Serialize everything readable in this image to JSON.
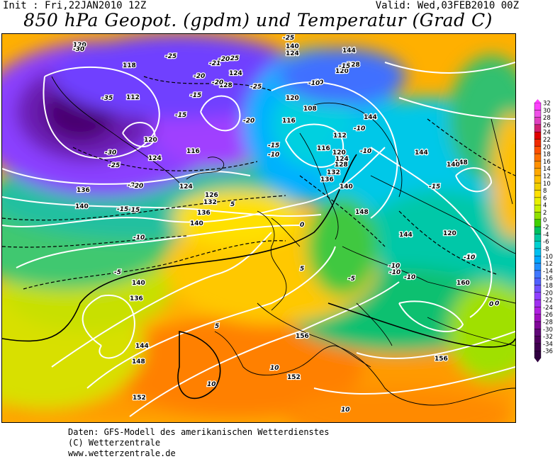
{
  "header": {
    "init": "Init : Fri,22JAN2010 12Z",
    "valid": "Valid: Wed,03FEB2010 00Z",
    "title": "850 hPa Geopot. (gpdm) und Temperatur (Grad C)"
  },
  "colorbar": {
    "labels": [
      "32",
      "30",
      "28",
      "26",
      "24",
      "22",
      "20",
      "18",
      "16",
      "14",
      "12",
      "10",
      "8",
      "6",
      "4",
      "2",
      "0",
      "-2",
      "-4",
      "-6",
      "-8",
      "-10",
      "-12",
      "-14",
      "-16",
      "-18",
      "-20",
      "-22",
      "-24",
      "-26",
      "-28",
      "-30",
      "-32",
      "-34",
      "-36"
    ],
    "colors": [
      "#ff40ff",
      "#f050e8",
      "#e040c0",
      "#d02070",
      "#e00000",
      "#f02a00",
      "#ff5000",
      "#ff7000",
      "#ff9000",
      "#ffa800",
      "#ffc000",
      "#f0d000",
      "#ffe000",
      "#e8f000",
      "#c8f000",
      "#90e000",
      "#40d000",
      "#00c060",
      "#00c8a0",
      "#00d0d0",
      "#00c0f0",
      "#00a8ff",
      "#2090ff",
      "#4078ff",
      "#5060ff",
      "#7050ff",
      "#9040ff",
      "#a030f0",
      "#b020e0",
      "#a010c0",
      "#800898",
      "#600878",
      "#500060",
      "#400050",
      "#300040"
    ]
  },
  "map": {
    "contour_labels_height": [
      "120",
      "118",
      "112",
      "120",
      "124",
      "128",
      "124",
      "120",
      "116",
      "108",
      "112",
      "116",
      "120",
      "124",
      "128",
      "132",
      "136",
      "140",
      "144",
      "148",
      "152",
      "156",
      "160",
      "120",
      "124",
      "116",
      "126",
      "132",
      "136",
      "140",
      "136",
      "140",
      "140",
      "136",
      "144",
      "148",
      "152",
      "156",
      "144",
      "148",
      "140",
      "144",
      "140",
      "144",
      "128",
      "124",
      "120"
    ],
    "contour_labels_temp": [
      "-30",
      "-25",
      "-25",
      "-20",
      "-21",
      "-25",
      "-20",
      "-35",
      "-15",
      "-15",
      "-20",
      "-25",
      "-20",
      "-30",
      "-25",
      "-20",
      "-15",
      "-10",
      "-15",
      "-10",
      "-5",
      "0",
      "5",
      "5",
      "-10",
      "-15",
      "-10",
      "-5",
      "0",
      "5",
      "10",
      "10",
      "10",
      "-10",
      "-10",
      "-10",
      "-15",
      "-10",
      "-10",
      "0",
      "-10",
      "-15",
      "-20",
      "-10"
    ]
  },
  "footer": {
    "line1": "Daten: GFS-Modell des amerikanischen Wetterdienstes",
    "line2": "(C) Wetterzentrale",
    "line3": "www.wetterzentrale.de"
  }
}
